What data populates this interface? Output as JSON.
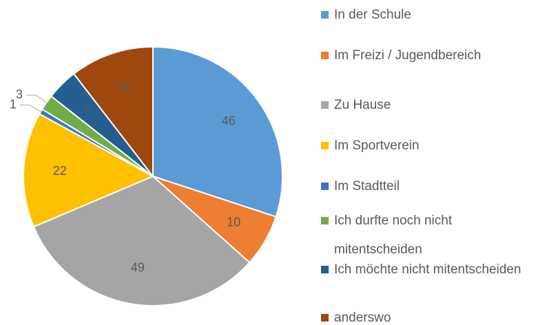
{
  "chart_data": {
    "type": "pie",
    "categories": [
      "In der Schule",
      "Im Freizi / Jugendbereich",
      "Zu Hause",
      "Im Sportverein",
      "Im Stadtteil",
      "Ich durfte noch nicht mitentscheiden",
      "Ich möchte nicht mitentscheiden",
      "anderswo"
    ],
    "values": [
      46,
      10,
      49,
      22,
      1,
      3,
      6,
      16
    ],
    "colors": [
      "#5B9BD5",
      "#ED7D31",
      "#A5A5A5",
      "#FFC000",
      "#4472C4",
      "#70AD47",
      "#255E91",
      "#9E480E"
    ],
    "legend": "right"
  }
}
